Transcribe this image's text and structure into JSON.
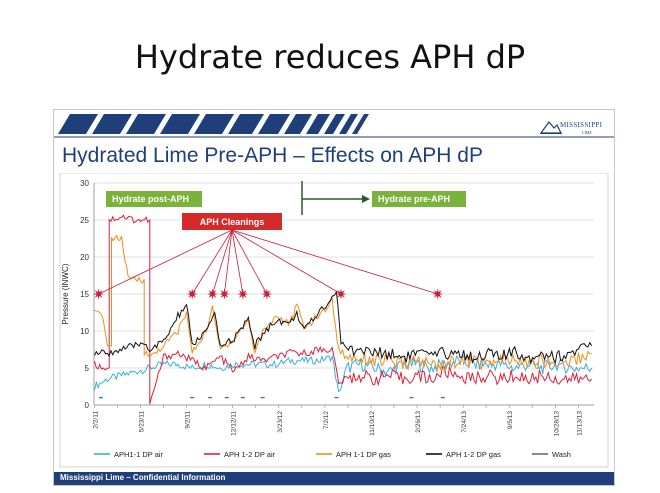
{
  "slide_title": "Hydrate reduces APH dP",
  "subtitle": "Hydrated Lime Pre-APH – Effects on APH dP",
  "logo_text": "MISSISSIPPI",
  "logo_sub": "LIME",
  "footer": "Mississippi Lime – Confidential Information",
  "annotations": {
    "post": "Hydrate post-APH",
    "pre": "Hydrate pre-APH",
    "cleanings": "APH Cleanings"
  },
  "colors": {
    "navy": "#1f3f7a",
    "aph11_air": "#3aaee0",
    "aph12_air": "#e0203a",
    "aph11_gas": "#f28c1e",
    "aph12_gas": "#111111",
    "wash": "#5a6f9a",
    "green_box": "#7ab23a",
    "red_box": "#d42a2a",
    "star": "#c8213a"
  },
  "chart_data": {
    "type": "line",
    "title": "",
    "xlabel": "",
    "ylabel": "Pressure (INWC)",
    "ylim": [
      0,
      30
    ],
    "yticks": [
      0,
      5,
      10,
      15,
      20,
      25,
      30
    ],
    "xlim": [
      "2011-01-31",
      "2014-01-20"
    ],
    "xticks": [
      "2/1/11",
      "3/23/11",
      "5/12/11",
      "7/1/11",
      "8/20/11",
      "10/9/11",
      "11/28/11",
      "1/17/12",
      "3/7/12",
      "4/26/12",
      "6/15/12",
      "8/4/12",
      "9/23/12",
      "11/12/12",
      "1/1/13",
      "2/20/13",
      "4/11/13",
      "5/31/13",
      "7/20/13",
      "9/8/13",
      "10/28/13",
      "12/17/13"
    ],
    "xtick_labels": [
      "2/2/11",
      "",
      "5/23/11",
      "",
      "9/2/11",
      "",
      "12/12/11",
      "",
      "3/23/12",
      "",
      "7/2/12",
      "",
      "11/10/12",
      "",
      "2/26/13",
      "",
      "7/24/13",
      "",
      "9/5/13",
      "",
      "10/28/13",
      "11/13/13"
    ],
    "legend_position": "bottom",
    "grid": true,
    "series": [
      {
        "name": "APH1-1 DP air",
        "x": [
          "2011-02-01",
          "2011-03-01",
          "2011-04-01",
          "2011-05-01",
          "2011-06-01",
          "2011-07-01",
          "2011-08-01",
          "2011-09-01",
          "2011-10-01",
          "2011-11-01",
          "2011-12-01",
          "2012-01-01",
          "2012-02-01",
          "2012-03-01",
          "2012-04-01",
          "2012-05-01",
          "2012-06-01",
          "2012-07-01",
          "2012-07-15",
          "2012-08-01",
          "2012-09-01",
          "2012-10-01",
          "2012-11-01",
          "2012-12-01",
          "2013-01-01",
          "2013-02-01",
          "2013-03-01",
          "2013-04-01",
          "2013-05-01",
          "2013-06-01",
          "2013-07-01",
          "2013-08-01",
          "2013-09-01",
          "2013-10-01",
          "2013-11-01",
          "2013-12-01",
          "2014-01-15"
        ],
        "values": [
          2.5,
          3.5,
          4.0,
          4.5,
          5.0,
          5.5,
          5.5,
          5.0,
          5.5,
          5.0,
          5.5,
          5.5,
          5.5,
          5.5,
          6.0,
          6.0,
          6.0,
          6.5,
          1.5,
          5.0,
          5.5,
          5.0,
          4.5,
          5.5,
          5.5,
          5.0,
          5.5,
          6.0,
          5.5,
          5.5,
          5.5,
          5.0,
          5.5,
          5.0,
          5.5,
          5.0,
          5.0
        ]
      },
      {
        "name": "APH 1-2 DP air",
        "x": [
          "2011-02-01",
          "2011-02-20",
          "2011-03-05",
          "2011-04-01",
          "2011-05-01",
          "2011-05-20",
          "2011-06-01",
          "2011-07-01",
          "2011-08-01",
          "2011-09-01",
          "2011-10-01",
          "2011-11-01",
          "2011-12-01",
          "2012-01-01",
          "2012-02-01",
          "2012-03-01",
          "2012-04-01",
          "2012-05-01",
          "2012-06-01",
          "2012-07-01",
          "2012-07-15",
          "2012-08-01",
          "2012-09-01",
          "2012-10-01",
          "2012-11-01",
          "2012-12-01",
          "2013-01-01",
          "2013-02-01",
          "2013-03-01",
          "2013-04-01",
          "2013-05-01",
          "2013-06-01",
          "2013-07-01",
          "2013-08-01",
          "2013-09-01",
          "2013-10-01",
          "2013-11-01",
          "2013-12-01",
          "2014-01-15"
        ],
        "values": [
          5.5,
          5.0,
          25.0,
          25.5,
          25.0,
          25.0,
          0.0,
          6.5,
          7.0,
          6.0,
          5.0,
          6.5,
          4.5,
          6.5,
          6.0,
          6.5,
          7.0,
          7.0,
          7.5,
          7.5,
          3.0,
          3.5,
          4.0,
          3.5,
          4.0,
          3.5,
          4.0,
          3.5,
          4.5,
          4.0,
          3.5,
          4.0,
          3.5,
          4.0,
          3.5,
          4.0,
          3.5,
          3.5,
          3.5
        ]
      },
      {
        "name": "APH 1-1 DP gas",
        "x": [
          "2011-02-01",
          "2011-02-20",
          "2011-03-01",
          "2011-03-10",
          "2011-04-01",
          "2011-04-15",
          "2011-05-01",
          "2011-05-20",
          "2011-06-01",
          "2011-07-01",
          "2011-08-01",
          "2011-08-20",
          "2011-09-01",
          "2011-10-01",
          "2011-10-15",
          "2011-11-01",
          "2011-12-01",
          "2012-01-01",
          "2012-01-15",
          "2012-02-01",
          "2012-03-01",
          "2012-04-01",
          "2012-04-15",
          "2012-05-01",
          "2012-06-01",
          "2012-07-01",
          "2012-07-15",
          "2012-08-01",
          "2012-09-01",
          "2012-10-01",
          "2012-11-01",
          "2012-12-01",
          "2013-01-01",
          "2013-02-01",
          "2013-03-01",
          "2013-04-01",
          "2013-05-01",
          "2013-06-01",
          "2013-07-01",
          "2013-08-01",
          "2013-09-01",
          "2013-10-01",
          "2013-11-01",
          "2013-12-01",
          "2014-01-15"
        ],
        "values": [
          12.5,
          12.0,
          8.0,
          22.5,
          22.5,
          17.0,
          17.0,
          7.0,
          6.5,
          8.0,
          10.0,
          12.5,
          7.0,
          10.0,
          13.0,
          7.5,
          9.0,
          11.5,
          7.0,
          10.0,
          12.0,
          11.0,
          13.5,
          10.5,
          12.0,
          14.0,
          7.5,
          6.5,
          6.5,
          6.0,
          6.0,
          5.5,
          6.0,
          5.5,
          5.5,
          6.0,
          6.0,
          5.5,
          6.0,
          6.0,
          5.5,
          6.0,
          5.5,
          6.0,
          7.0
        ]
      },
      {
        "name": "APH 1-2 DP gas",
        "x": [
          "2011-02-01",
          "2011-03-01",
          "2011-04-01",
          "2011-05-01",
          "2011-05-20",
          "2011-06-01",
          "2011-07-01",
          "2011-08-01",
          "2011-08-20",
          "2011-09-01",
          "2011-10-01",
          "2011-10-20",
          "2011-11-01",
          "2011-12-01",
          "2012-01-01",
          "2012-01-15",
          "2012-02-01",
          "2012-03-01",
          "2012-04-01",
          "2012-04-15",
          "2012-05-01",
          "2012-06-01",
          "2012-07-01",
          "2012-07-10",
          "2012-07-20",
          "2012-08-01",
          "2012-09-01",
          "2012-10-01",
          "2012-11-01",
          "2012-12-01",
          "2013-01-01",
          "2013-02-01",
          "2013-03-01",
          "2013-04-01",
          "2013-05-01",
          "2013-06-01",
          "2013-07-01",
          "2013-08-01",
          "2013-09-01",
          "2013-10-01",
          "2013-11-01",
          "2013-12-01",
          "2014-01-15"
        ],
        "values": [
          7.0,
          7.0,
          7.5,
          8.0,
          8.5,
          7.5,
          8.5,
          12.0,
          13.5,
          8.0,
          10.0,
          12.0,
          8.0,
          9.0,
          11.5,
          8.0,
          9.5,
          11.5,
          11.0,
          12.5,
          10.0,
          12.5,
          14.5,
          15.5,
          8.5,
          7.5,
          7.5,
          7.0,
          7.0,
          6.5,
          7.0,
          6.5,
          7.0,
          7.0,
          6.5,
          7.0,
          6.5,
          7.0,
          6.5,
          7.0,
          6.5,
          7.0,
          8.0
        ]
      },
      {
        "name": "Wash",
        "x": [
          "2011-02-15",
          "2011-09-01",
          "2011-10-10",
          "2011-11-15",
          "2011-12-20",
          "2012-02-01",
          "2012-07-10",
          "2012-12-20",
          "2013-02-26"
        ],
        "values": [
          1,
          1,
          1,
          1,
          1,
          1,
          1,
          1,
          1
        ]
      }
    ],
    "cleaning_markers": {
      "x": [
        "2011-02-10",
        "2011-09-01",
        "2011-10-15",
        "2011-11-10",
        "2011-12-20",
        "2012-02-10",
        "2012-07-20",
        "2013-02-15"
      ],
      "value": 15
    }
  }
}
